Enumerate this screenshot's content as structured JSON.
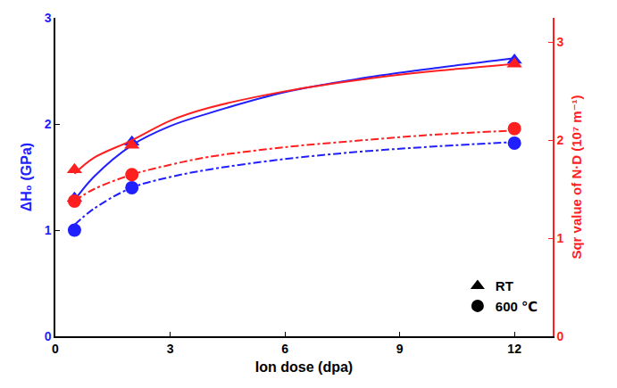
{
  "chart_data": {
    "type": "scatter",
    "x_label": "Ion dose (dpa)",
    "y_label": "ΔH₀ (GPa)",
    "y2_label": "Sqr value of N·D (10⁷ m⁻¹)",
    "xlim": [
      0,
      13
    ],
    "xticks": [
      0,
      3,
      6,
      9,
      12
    ],
    "ylim": [
      0,
      3
    ],
    "yticks": [
      0,
      1,
      2,
      3
    ],
    "y2lim": [
      0,
      3.25
    ],
    "y2ticks": [
      0,
      1,
      2,
      3
    ],
    "grid": false,
    "legend": "lower right",
    "series": [
      {
        "name": "RT",
        "axis": "y",
        "color": "#1f1fff",
        "marker": "triangle-up",
        "x": [
          0.5,
          2,
          12
        ],
        "values": [
          1.3,
          1.83,
          2.6
        ],
        "fit": {
          "line_style": "solid",
          "x": [
            0.5,
            1,
            2,
            3,
            4,
            6,
            8,
            10,
            12
          ],
          "values": [
            1.28,
            1.5,
            1.8,
            1.98,
            2.1,
            2.3,
            2.43,
            2.53,
            2.62
          ]
        }
      },
      {
        "name": "600 ℃",
        "axis": "y",
        "color": "#1f1fff",
        "marker": "circle",
        "x": [
          0.5,
          2,
          12
        ],
        "values": [
          1.0,
          1.4,
          1.82
        ],
        "fit": {
          "line_style": "dashdot",
          "x": [
            0.5,
            1,
            2,
            3,
            4,
            6,
            8,
            10,
            12
          ],
          "values": [
            1.05,
            1.2,
            1.4,
            1.5,
            1.57,
            1.67,
            1.74,
            1.79,
            1.83
          ]
        }
      },
      {
        "name": "RT",
        "axis": "y2",
        "color": "#ff1f1f",
        "marker": "triangle-up",
        "x": [
          0.5,
          2,
          12
        ],
        "values": [
          1.7,
          1.95,
          2.78
        ],
        "fit": {
          "line_style": "solid",
          "x": [
            0.5,
            1,
            2,
            3,
            4,
            6,
            8,
            10,
            12
          ],
          "values": [
            1.66,
            1.82,
            2.0,
            2.2,
            2.33,
            2.5,
            2.62,
            2.71,
            2.78
          ]
        }
      },
      {
        "name": "600 ℃",
        "axis": "y2",
        "color": "#ff1f1f",
        "marker": "circle",
        "x": [
          0.5,
          2,
          12
        ],
        "values": [
          1.38,
          1.65,
          2.12
        ],
        "fit": {
          "line_style": "dashdot",
          "x": [
            0.5,
            1,
            2,
            3,
            4,
            6,
            8,
            10,
            12
          ],
          "values": [
            1.38,
            1.5,
            1.65,
            1.75,
            1.83,
            1.93,
            2.0,
            2.06,
            2.1
          ]
        }
      }
    ]
  }
}
